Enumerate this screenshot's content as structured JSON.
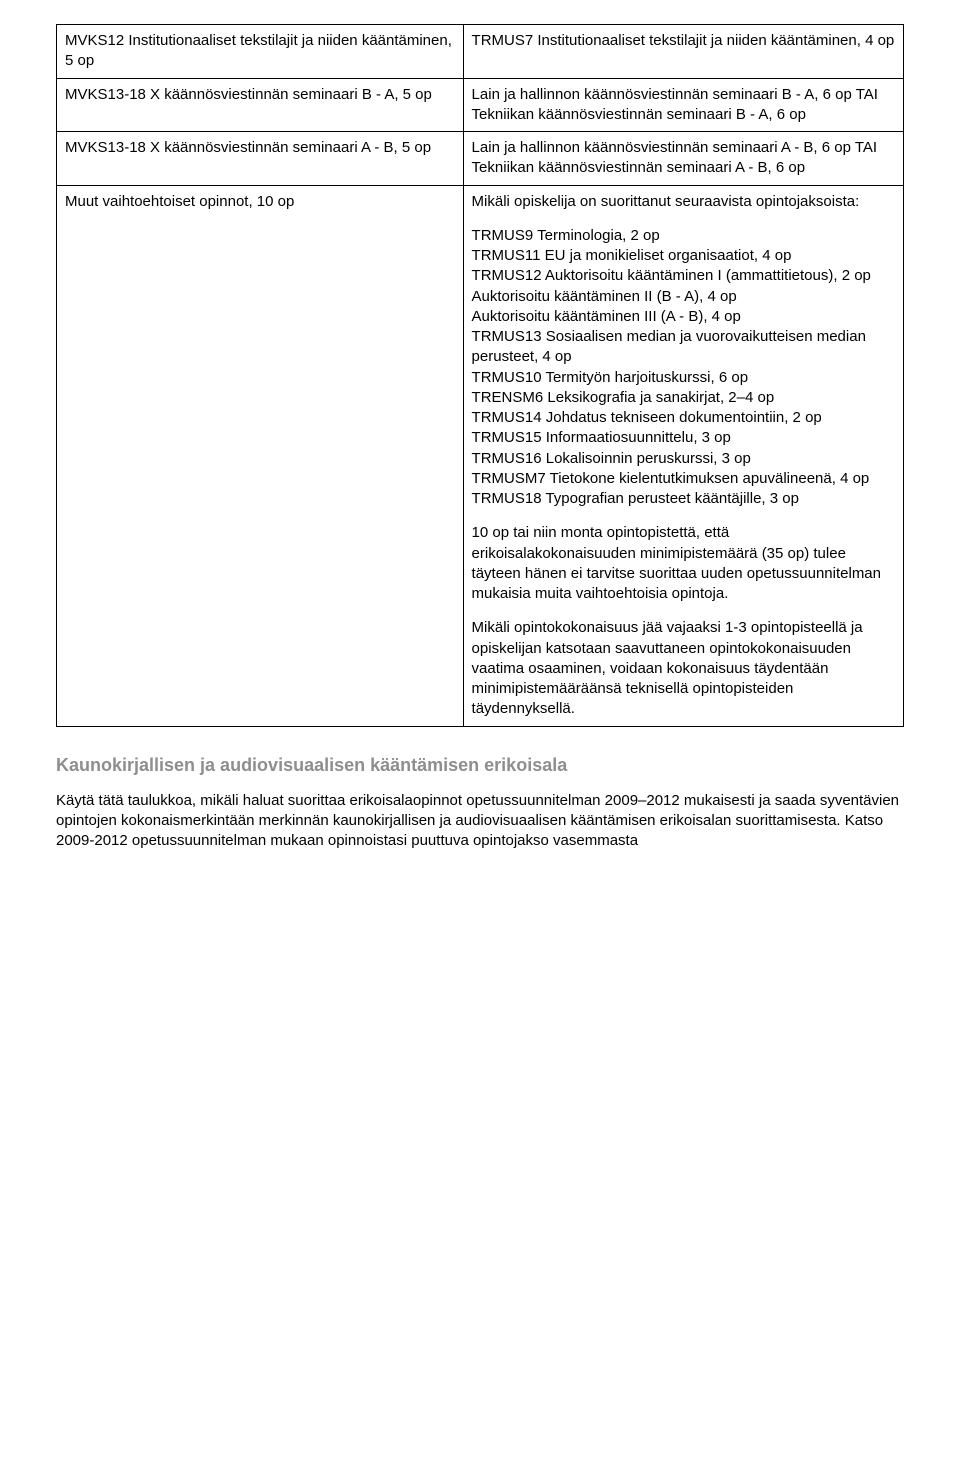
{
  "rows": [
    {
      "left": "MVKS12 Institutionaaliset tekstilajit ja niiden kääntäminen, 5 op",
      "right": "TRMUS7 Institutionaaliset tekstilajit ja niiden kääntäminen, 4 op"
    },
    {
      "left": "MVKS13-18 X käännösviestinnän seminaari B - A, 5 op",
      "right": "Lain ja hallinnon käännösviestinnän seminaari B - A, 6 op TAI Tekniikan käännösviestinnän seminaari B - A, 6 op"
    },
    {
      "left": "MVKS13-18 X käännösviestinnän seminaari A - B, 5 op",
      "right": "Lain ja hallinnon käännösviestinnän seminaari A - B, 6 op TAI Tekniikan käännösviestinnän seminaari A - B, 6 op"
    }
  ],
  "row4": {
    "left": "Muut vaihtoehtoiset opinnot, 10 op",
    "intro": "Mikäli opiskelija on suorittanut seuraavista opintojaksoista:",
    "list": "TRMUS9 Terminologia, 2 op\nTRMUS11 EU ja monikieliset organisaatiot, 4 op\nTRMUS12 Auktorisoitu kääntäminen I (ammattitietous), 2 op\nAuktorisoitu kääntäminen II (B - A), 4 op\nAuktorisoitu kääntäminen III (A - B), 4 op\nTRMUS13 Sosiaalisen median ja vuorovaikutteisen median perusteet, 4 op\nTRMUS10 Termityön harjoituskurssi, 6 op\nTRENSM6 Leksikografia ja sanakirjat, 2–4 op\nTRMUS14 Johdatus tekniseen dokumentointiin, 2 op\nTRMUS15 Informaatiosuunnittelu, 3 op\nTRMUS16 Lokalisoinnin peruskurssi, 3 op\nTRMUSM7 Tietokone kielentutkimuksen apuvälineenä, 4 op\nTRMUS18 Typografian perusteet kääntäjille, 3 op",
    "p2": "10 op tai niin monta opintopistettä, että erikoisalakokonaisuuden minimipistemäärä (35 op) tulee täyteen hänen ei tarvitse suorittaa uuden opetussuunnitelman mukaisia muita vaihtoehtoisia opintoja.",
    "p3": "Mikäli opintokokonaisuus jää vajaaksi 1-3 opintopisteellä ja opiskelijan katsotaan saavuttaneen opintokokonaisuuden vaatima osaaminen, voidaan kokonaisuus täydentään minimipistemääräänsä teknisellä opintopisteiden täydennyksellä."
  },
  "section_title": "Kaunokirjallisen ja audiovisuaalisen kääntämisen erikoisala",
  "paragraph": "Käytä tätä taulukkoa, mikäli haluat suorittaa erikoisalaopinnot opetussuunnitelman 2009–2012 mukaisesti ja saada syventävien opintojen kokonaismerkintään merkinnän kaunokirjallisen ja audiovisuaalisen kääntämisen erikoisalan suorittamisesta. Katso 2009-2012 opetussuunnitelman mukaan opinnoistasi puuttuva opintojakso vasemmasta"
}
